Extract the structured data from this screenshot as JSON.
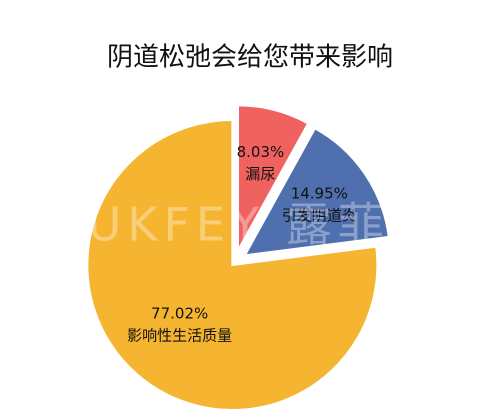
{
  "chart_data": {
    "type": "pie",
    "title": "阴道松弛会给您带来影响",
    "categories": [
      "漏尿",
      "引发阴道炎",
      "影响性生活质量"
    ],
    "values": [
      8.03,
      14.95,
      77.02
    ],
    "value_labels": [
      "8.03%",
      "14.95%",
      "77.02%"
    ],
    "colors": [
      "#f0625f",
      "#4f6fae",
      "#f5b530"
    ],
    "watermark": "LUKFEY 露菲娅"
  }
}
